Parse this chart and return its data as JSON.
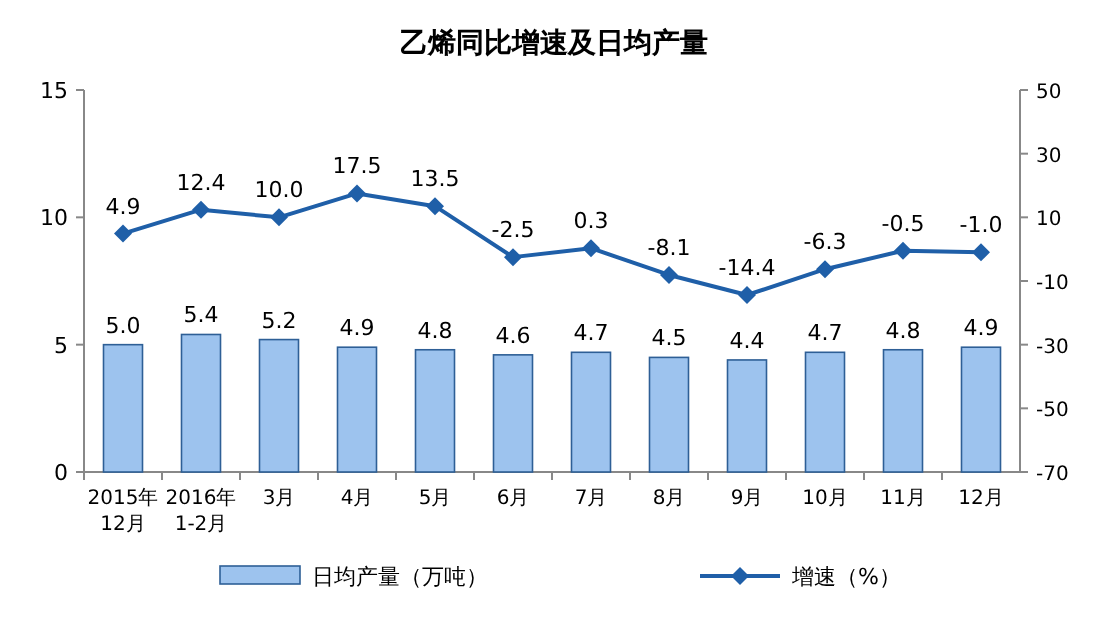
{
  "chart_data": {
    "type": "bar",
    "title": "乙烯同比增速及日均产量",
    "categories": [
      "2015年\n12月",
      "2016年\n1-2月",
      "3月",
      "4月",
      "5月",
      "6月",
      "7月",
      "8月",
      "9月",
      "10月",
      "11月",
      "12月"
    ],
    "series": [
      {
        "name": "日均产量（万吨）",
        "color": "#9dc3ee",
        "values": [
          5.0,
          5.4,
          5.2,
          4.9,
          4.8,
          4.6,
          4.7,
          4.5,
          4.4,
          4.7,
          4.8,
          4.9
        ],
        "value_labels": [
          "5.0",
          "5.4",
          "5.2",
          "4.9",
          "4.8",
          "4.6",
          "4.7",
          "4.5",
          "4.4",
          "4.7",
          "4.8",
          "4.9"
        ]
      },
      {
        "name": "增速（%）",
        "type": "line",
        "axis": "y2",
        "color": "#1f5fa8",
        "marker": "diamond",
        "values": [
          4.9,
          12.4,
          10.0,
          17.5,
          13.5,
          -2.5,
          0.3,
          -8.1,
          -14.4,
          -6.3,
          -0.5,
          -1.0
        ],
        "value_labels": [
          "4.9",
          "12.4",
          "10.0",
          "17.5",
          "13.5",
          "-2.5",
          "0.3",
          "-8.1",
          "-14.4",
          "-6.3",
          "-0.5",
          "-1.0"
        ]
      }
    ],
    "ylim": [
      0,
      15
    ],
    "yticks": [
      0,
      5,
      10,
      15
    ],
    "y2lim": [
      -70,
      50
    ],
    "y2ticks": [
      50,
      30,
      10,
      -10,
      -30,
      -50,
      -70
    ],
    "legend": "bottom"
  }
}
